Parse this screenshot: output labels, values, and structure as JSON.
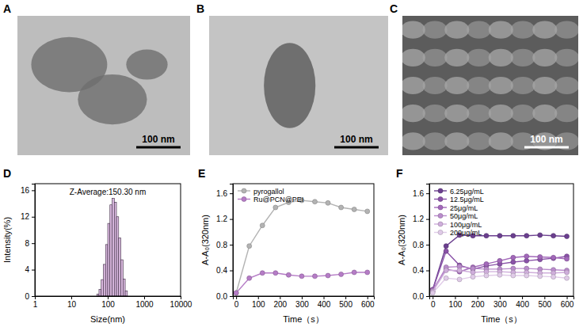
{
  "chart_data": [
    {
      "type": "image",
      "panel": "A",
      "annotations": [
        "100 nm"
      ]
    },
    {
      "type": "image",
      "panel": "B",
      "annotations": [
        "100 nm"
      ]
    },
    {
      "type": "image",
      "panel": "C",
      "annotations": [
        "100 nm"
      ]
    },
    {
      "type": "histogram",
      "panel": "D",
      "annotations": [
        "Z-Average:150.30 nm"
      ],
      "x_label": "Size(nm)",
      "y_label": "Intensity(%)",
      "log": "x",
      "color": "#d9b8de",
      "bins": [
        50.1,
        57.5,
        66.1,
        75.9,
        87.1,
        100,
        114.8,
        131.8,
        151.4,
        173.8,
        199.5,
        229.1,
        263.0,
        302.0,
        346.7
      ],
      "values": [
        0.3,
        1.0,
        2.5,
        4.8,
        7.8,
        11.0,
        13.8,
        14.8,
        14.2,
        12.0,
        8.8,
        5.5,
        2.6,
        0.8
      ],
      "xlim": [
        1,
        10000
      ],
      "xticks": [
        1,
        10,
        100,
        1000,
        10000
      ],
      "ylim": [
        0,
        17
      ],
      "yticks": [
        0,
        4,
        8,
        12,
        16
      ],
      "grid": false
    },
    {
      "type": "line",
      "panel": "E",
      "x_label": "Time（s）",
      "y_label": "A-A₀(320nm)",
      "x": [
        0,
        60,
        120,
        180,
        240,
        300,
        360,
        420,
        480,
        540,
        600
      ],
      "series": [
        {
          "name": "pyrogallol",
          "color": "#b3b3b3",
          "marker": "circle",
          "values": [
            0.05,
            0.78,
            1.1,
            1.38,
            1.46,
            1.49,
            1.47,
            1.45,
            1.38,
            1.35,
            1.32
          ]
        },
        {
          "name": "Ru@PCN@PEI",
          "color": "#b57cc6",
          "marker": "circle",
          "values": [
            0.05,
            0.28,
            0.36,
            0.36,
            0.33,
            0.31,
            0.31,
            0.32,
            0.34,
            0.37,
            0.37
          ]
        }
      ],
      "xlim": [
        -15,
        630
      ],
      "xticks": [
        0,
        100,
        200,
        300,
        400,
        500,
        600
      ],
      "ylim": [
        0,
        1.75
      ],
      "yticks": [
        {
          "value": 0,
          "label": "0.0"
        },
        {
          "value": 0.4,
          "label": "0.4"
        },
        {
          "value": 0.8,
          "label": "0.8"
        },
        {
          "value": 1.2,
          "label": "1.2"
        },
        {
          "value": 1.6,
          "label": "1.6"
        }
      ],
      "legend": "upper left",
      "grid": false
    },
    {
      "type": "line",
      "panel": "F",
      "x_label": "Time（s）",
      "y_label": "A-A₀(320nm)",
      "x": [
        0,
        60,
        120,
        180,
        240,
        300,
        360,
        420,
        480,
        540,
        600
      ],
      "series": [
        {
          "name": "6.25μg/mL",
          "color": "#6b3f8f",
          "marker": "circle",
          "values": [
            0.1,
            0.78,
            0.95,
            0.94,
            0.94,
            0.94,
            0.94,
            0.94,
            0.95,
            0.94,
            0.93
          ]
        },
        {
          "name": "12.5μg/mL",
          "color": "#8a52a8",
          "marker": "circle",
          "values": [
            0.1,
            0.7,
            0.48,
            0.42,
            0.47,
            0.5,
            0.53,
            0.55,
            0.57,
            0.59,
            0.62
          ]
        },
        {
          "name": "25μg/mL",
          "color": "#a268ba",
          "marker": "circle",
          "values": [
            0.1,
            0.42,
            0.38,
            0.45,
            0.5,
            0.55,
            0.6,
            0.62,
            0.61,
            0.6,
            0.58
          ]
        },
        {
          "name": "50μg/mL",
          "color": "#ba8ccc",
          "marker": "circle",
          "values": [
            0.08,
            0.45,
            0.46,
            0.43,
            0.42,
            0.42,
            0.43,
            0.43,
            0.42,
            0.41,
            0.4
          ]
        },
        {
          "name": "100μg/mL",
          "color": "#cfaedb",
          "marker": "circle",
          "values": [
            0.07,
            0.4,
            0.4,
            0.37,
            0.38,
            0.38,
            0.37,
            0.37,
            0.36,
            0.36,
            0.37
          ]
        },
        {
          "name": "200μg/mL",
          "color": "#e0cbe8",
          "marker": "circle",
          "values": [
            0.05,
            0.28,
            0.26,
            0.3,
            0.32,
            0.33,
            0.32,
            0.32,
            0.31,
            0.3,
            0.28
          ]
        }
      ],
      "xlim": [
        -15,
        630
      ],
      "xticks": [
        0,
        100,
        200,
        300,
        400,
        500,
        600
      ],
      "ylim": [
        0,
        1.75
      ],
      "yticks": [
        {
          "value": 0,
          "label": "0.0"
        },
        {
          "value": 0.4,
          "label": "0.4"
        },
        {
          "value": 0.8,
          "label": "0.8"
        },
        {
          "value": 1.2,
          "label": "1.2"
        },
        {
          "value": 1.6,
          "label": "1.6"
        }
      ],
      "legend": "upper left",
      "grid": false
    }
  ]
}
